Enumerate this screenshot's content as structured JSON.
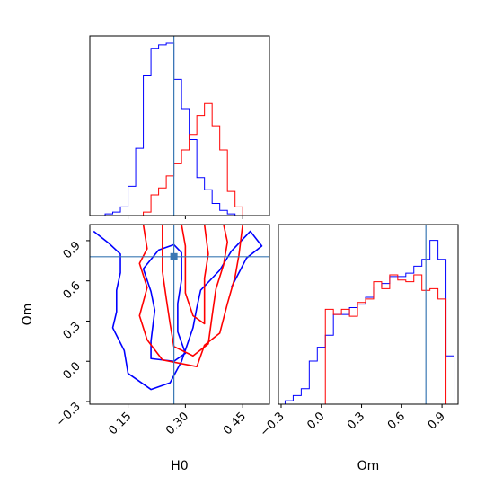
{
  "chart_data": {
    "type": "corner",
    "colors": {
      "series_a": "#0000ff",
      "series_b": "#ff0000",
      "truth": "#3a78b4"
    },
    "truth": {
      "H0": 0.27,
      "Om": 0.78
    },
    "axes": {
      "H0": {
        "label": "H0",
        "range": [
          0.05,
          0.52
        ],
        "ticks": [
          "0.15",
          "0.30",
          "0.45"
        ],
        "tick_values": [
          0.15,
          0.3,
          0.45
        ]
      },
      "Om": {
        "label": "Om",
        "range": [
          -0.32,
          1.02
        ],
        "ticks": [
          "−0.3",
          "0.0",
          "0.3",
          "0.6",
          "0.9"
        ],
        "tick_values": [
          -0.3,
          0.0,
          0.3,
          0.6,
          0.9
        ]
      }
    },
    "histograms": {
      "H0": {
        "bins": [
          0.07,
          0.09,
          0.11,
          0.13,
          0.15,
          0.17,
          0.19,
          0.21,
          0.23,
          0.25,
          0.27,
          0.29,
          0.31,
          0.33,
          0.35,
          0.37,
          0.39,
          0.41,
          0.43,
          0.45,
          0.47,
          0.49
        ],
        "series_a": [
          0.0,
          0.01,
          0.02,
          0.05,
          0.17,
          0.39,
          0.81,
          0.97,
          0.99,
          1.0,
          0.79,
          0.62,
          0.44,
          0.22,
          0.15,
          0.07,
          0.03,
          0.01,
          0.0,
          0.0,
          0.0
        ],
        "series_b": [
          0.0,
          0.0,
          0.0,
          0.0,
          0.0,
          0.0,
          0.02,
          0.12,
          0.16,
          0.23,
          0.3,
          0.38,
          0.47,
          0.58,
          0.65,
          0.52,
          0.38,
          0.14,
          0.05,
          0.0,
          0.0
        ]
      },
      "Om": {
        "bins": [
          -0.27,
          -0.21,
          -0.15,
          -0.09,
          -0.03,
          0.03,
          0.09,
          0.15,
          0.21,
          0.27,
          0.33,
          0.39,
          0.45,
          0.51,
          0.57,
          0.63,
          0.69,
          0.75,
          0.81,
          0.87,
          0.93,
          0.99
        ],
        "series_a": [
          0.02,
          0.05,
          0.09,
          0.25,
          0.33,
          0.4,
          0.52,
          0.52,
          0.56,
          0.58,
          0.62,
          0.68,
          0.7,
          0.74,
          0.74,
          0.76,
          0.8,
          0.84,
          0.95,
          0.84,
          0.28
        ],
        "series_b": [
          0.0,
          0.0,
          0.0,
          0.0,
          0.0,
          0.55,
          0.52,
          0.55,
          0.51,
          0.59,
          0.61,
          0.71,
          0.67,
          0.75,
          0.72,
          0.71,
          0.75,
          0.66,
          0.67,
          0.61,
          0.0
        ]
      }
    },
    "contours": {
      "series_a": [
        [
          [
            0.06,
            0.97
          ],
          [
            0.1,
            0.88
          ],
          [
            0.13,
            0.8
          ],
          [
            0.13,
            0.66
          ],
          [
            0.12,
            0.53
          ],
          [
            0.12,
            0.37
          ],
          [
            0.11,
            0.25
          ],
          [
            0.14,
            0.08
          ],
          [
            0.15,
            -0.09
          ],
          [
            0.21,
            -0.21
          ],
          [
            0.26,
            -0.16
          ],
          [
            0.29,
            0.0
          ],
          [
            0.32,
            0.25
          ],
          [
            0.33,
            0.4
          ],
          [
            0.34,
            0.53
          ],
          [
            0.39,
            0.68
          ],
          [
            0.42,
            0.82
          ],
          [
            0.47,
            0.97
          ],
          [
            0.5,
            0.86
          ],
          [
            0.46,
            0.77
          ],
          [
            0.44,
            0.66
          ],
          [
            0.42,
            0.55
          ]
        ],
        [
          [
            0.19,
            0.69
          ],
          [
            0.21,
            0.52
          ],
          [
            0.22,
            0.38
          ],
          [
            0.21,
            0.15
          ],
          [
            0.21,
            0.02
          ],
          [
            0.27,
            0.0
          ],
          [
            0.3,
            0.06
          ],
          [
            0.28,
            0.22
          ],
          [
            0.28,
            0.43
          ],
          [
            0.29,
            0.61
          ],
          [
            0.29,
            0.81
          ],
          [
            0.27,
            0.87
          ],
          [
            0.23,
            0.83
          ],
          [
            0.19,
            0.69
          ]
        ]
      ],
      "series_b": [
        [
          [
            0.19,
            1.02
          ],
          [
            0.2,
            0.84
          ],
          [
            0.18,
            0.73
          ],
          [
            0.2,
            0.55
          ],
          [
            0.18,
            0.34
          ],
          [
            0.2,
            0.16
          ],
          [
            0.24,
            0.01
          ],
          [
            0.33,
            -0.04
          ],
          [
            0.35,
            0.12
          ],
          [
            0.39,
            0.21
          ],
          [
            0.41,
            0.43
          ],
          [
            0.43,
            0.63
          ],
          [
            0.44,
            0.79
          ],
          [
            0.45,
            1.02
          ]
        ],
        [
          [
            0.24,
            1.02
          ],
          [
            0.24,
            0.86
          ],
          [
            0.24,
            0.67
          ],
          [
            0.25,
            0.47
          ],
          [
            0.26,
            0.28
          ],
          [
            0.27,
            0.11
          ],
          [
            0.32,
            0.04
          ],
          [
            0.36,
            0.13
          ],
          [
            0.37,
            0.34
          ],
          [
            0.38,
            0.54
          ],
          [
            0.4,
            0.72
          ],
          [
            0.41,
            0.89
          ],
          [
            0.4,
            1.02
          ]
        ],
        [
          [
            0.29,
            1.02
          ],
          [
            0.3,
            0.86
          ],
          [
            0.3,
            0.64
          ],
          [
            0.3,
            0.51
          ],
          [
            0.32,
            0.34
          ],
          [
            0.35,
            0.28
          ],
          [
            0.35,
            0.45
          ],
          [
            0.35,
            0.62
          ],
          [
            0.36,
            0.8
          ],
          [
            0.35,
            1.02
          ]
        ]
      ]
    }
  }
}
